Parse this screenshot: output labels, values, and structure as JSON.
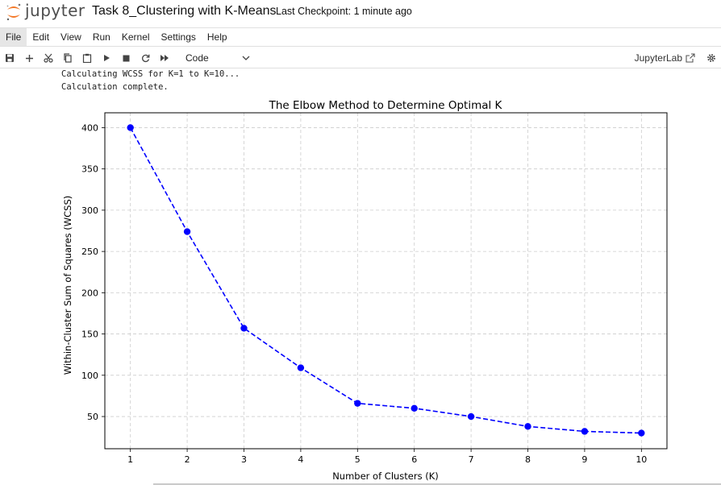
{
  "header": {
    "logo_text": "jupyter",
    "notebook_title": "Task 8_Clustering with K-Means",
    "checkpoint": "Last Checkpoint: 1 minute ago"
  },
  "menu": {
    "items": [
      "File",
      "Edit",
      "View",
      "Run",
      "Kernel",
      "Settings",
      "Help"
    ]
  },
  "toolbar": {
    "cell_type": "Code",
    "jupyterlab_label": "JupyterLab",
    "icons": [
      "save-icon",
      "add-cell-icon",
      "cut-icon",
      "copy-icon",
      "paste-icon",
      "run-icon",
      "stop-icon",
      "restart-icon",
      "fast-forward-icon"
    ]
  },
  "output": {
    "lines": [
      "Calculating WCSS for K=1 to K=10...",
      "Calculation complete."
    ]
  },
  "chart_data": {
    "type": "line",
    "title": "The Elbow Method to Determine Optimal K",
    "xlabel": "Number of Clusters (K)",
    "ylabel": "Within-Cluster Sum of Squares (WCSS)",
    "x": [
      1,
      2,
      3,
      4,
      5,
      6,
      7,
      8,
      9,
      10
    ],
    "series": [
      {
        "values": [
          400,
          274,
          157,
          109,
          66,
          60,
          50,
          38,
          32,
          30
        ],
        "color": "#0000ff",
        "line_style": "dashed",
        "marker": "circle"
      }
    ],
    "xticks": [
      1,
      2,
      3,
      4,
      5,
      6,
      7,
      8,
      9,
      10
    ],
    "yticks": [
      50,
      100,
      150,
      200,
      250,
      300,
      350,
      400
    ],
    "xlim": [
      0.55,
      10.45
    ],
    "ylim": [
      11,
      418
    ],
    "grid": true
  }
}
